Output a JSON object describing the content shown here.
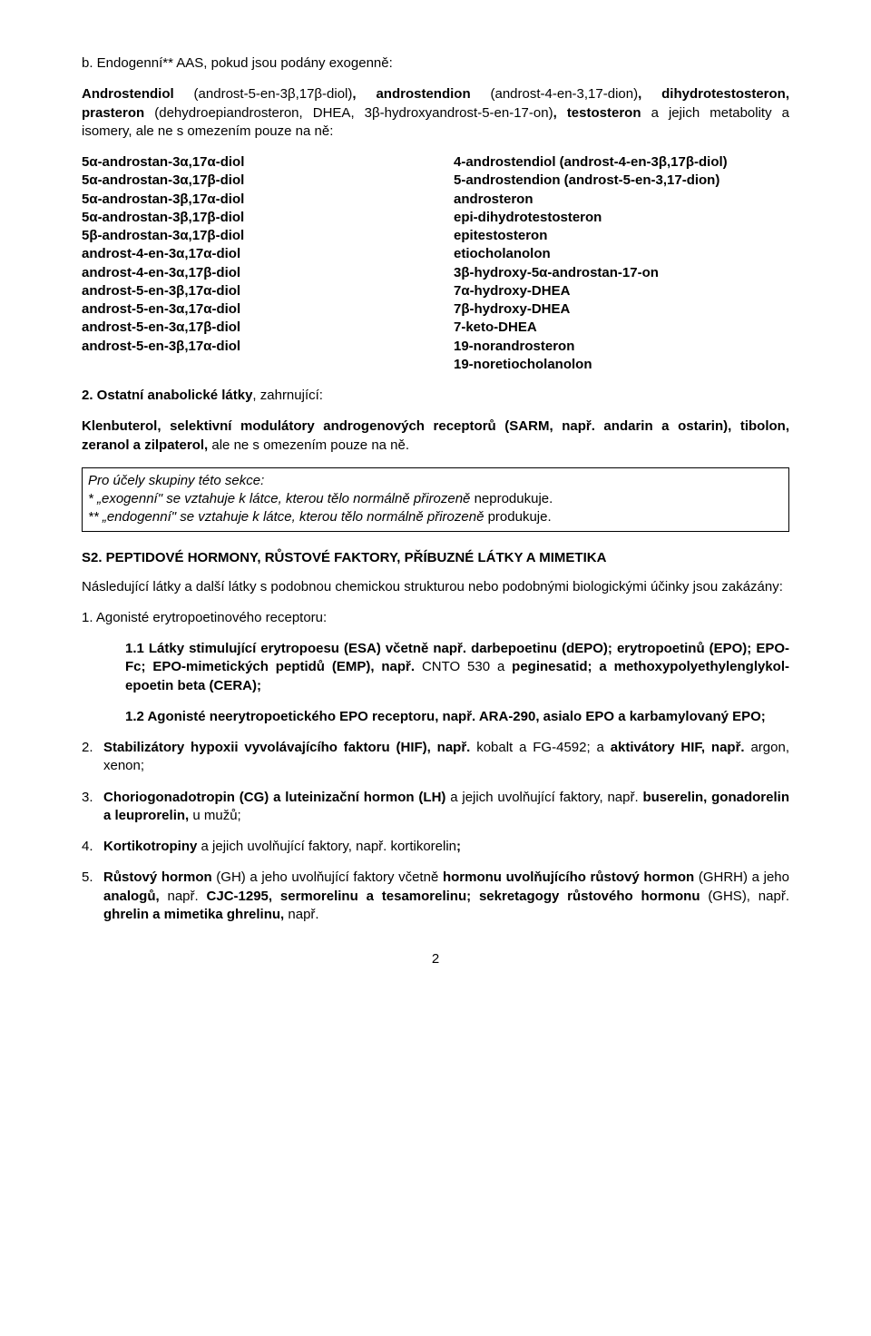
{
  "heading_b": "b. Endogenní** AAS, pokud jsou podány exogenně:",
  "intro_para": "Androstendiol (androst-5-en-3β,17β-diol), androstendion (androst-4-en-3,17-dion), dihydrotestosteron, prasteron (dehydroepiandrosteron, DHEA, 3β-hydroxyandrost-5-en-17-on), testosteron a jejich metabolity a isomery, ale ne s omezením pouze na ně:",
  "left_col": [
    "5α-androstan-3α,17α-diol",
    "5α-androstan-3α,17β-diol",
    "5α-androstan-3β,17α-diol",
    "5α-androstan-3β,17β-diol",
    "5β-androstan-3α,17β-diol",
    "androst-4-en-3α,17α-diol",
    "androst-4-en-3α,17β-diol",
    "androst-5-en-3β,17α-diol",
    "androst-5-en-3α,17α-diol",
    "androst-5-en-3α,17β-diol",
    "androst-5-en-3β,17α-diol"
  ],
  "right_col": [
    "4-androstendiol (androst-4-en-3β,17β-diol)",
    "5-androstendion (androst-5-en-3,17-dion)",
    "androsteron",
    "epi-dihydrotestosteron",
    "epitestosteron",
    "etiocholanolon",
    "3β-hydroxy-5α-androstan-17-on",
    "7α-hydroxy-DHEA",
    "7β-hydroxy-DHEA",
    "7-keto-DHEA",
    "19-norandrosteron",
    "19-noretiocholanolon"
  ],
  "section2_lead": "2. Ostatní anabolické látky",
  "section2_tail": ", zahrnující:",
  "klenbuterol_bold1": "Klenbuterol, selektivní modulátory androgenových receptorů (SARM, např. andarin a ostarin), tibolon, zeranol a zilpaterol,",
  "klenbuterol_plain": " ale ne s omezením pouze na ně.",
  "box_l1": "Pro účely skupiny této sekce:",
  "box_l2a": "* „exogenní\" se vztahuje k látce, kterou tělo normálně přirozeně ",
  "box_l2b": "neprodukuje.",
  "box_l3a": "** „endogenní\" se vztahuje k látce, kterou tělo normálně přirozeně ",
  "box_l3b": "produkuje.",
  "s2_title": "S2. PEPTIDOVÉ HORMONY, RŮSTOVÉ FAKTORY, PŘÍBUZNÉ LÁTKY A MIMETIKA",
  "s2_intro": "Následující látky a další látky s podobnou chemickou strukturou nebo podobnými biologickými účinky jsou zakázány:",
  "item1": "1.   Agonisté erytropoetinového receptoru:",
  "item1_1a": "1.1 Látky stimulující erytropoesu (ESA) včetně např. darbepoetinu (dEPO); erytropoetinů (EPO); EPO-Fc; EPO-mimetických peptidů (EMP), např.",
  "item1_1b": " CNTO 530 a ",
  "item1_1c": "peginesatid; a methoxypolyethylenglykol-epoetin beta (CERA);",
  "item1_2a": "1.2 Agonisté neerytropoetického EPO receptoru, např. ARA-290, asialo EPO a karbamylovaný EPO;",
  "item2_num": "2.",
  "item2a": "Stabilizátory hypoxii vyvolávajícího faktoru (HIF), např.",
  "item2b": " kobalt a FG-4592; a ",
  "item2c": "aktivátory HIF, např.",
  "item2d": " argon, xenon;",
  "item3_num": "3.",
  "item3a": "Choriogonadotropin (CG) a luteinizační hormon (LH)",
  "item3b": " a jejich uvolňující faktory, např. ",
  "item3c": "buserelin, gonadorelin a leuprorelin,",
  "item3d": " u mužů;",
  "item4_num": "4.",
  "item4a": "Kortikotropiny",
  "item4b": " a jejich uvolňující faktory, např. kortikorelin",
  "item4c": ";",
  "item5_num": "5.",
  "item5a": "Růstový hormon",
  "item5b": " (GH) a jeho uvolňující faktory včetně ",
  "item5c": "hormonu uvolňujícího růstový hormon",
  "item5d": " (GHRH) a jeho ",
  "item5e": "analogů,",
  "item5f": " např. ",
  "item5g": "CJC-1295, sermorelinu a tesamorelinu; sekretagogy růstového hormonu",
  "item5h": " (GHS), např. ",
  "item5i": "ghrelin a mimetika ghrelinu,",
  "item5j": " např.",
  "page_number": "2"
}
